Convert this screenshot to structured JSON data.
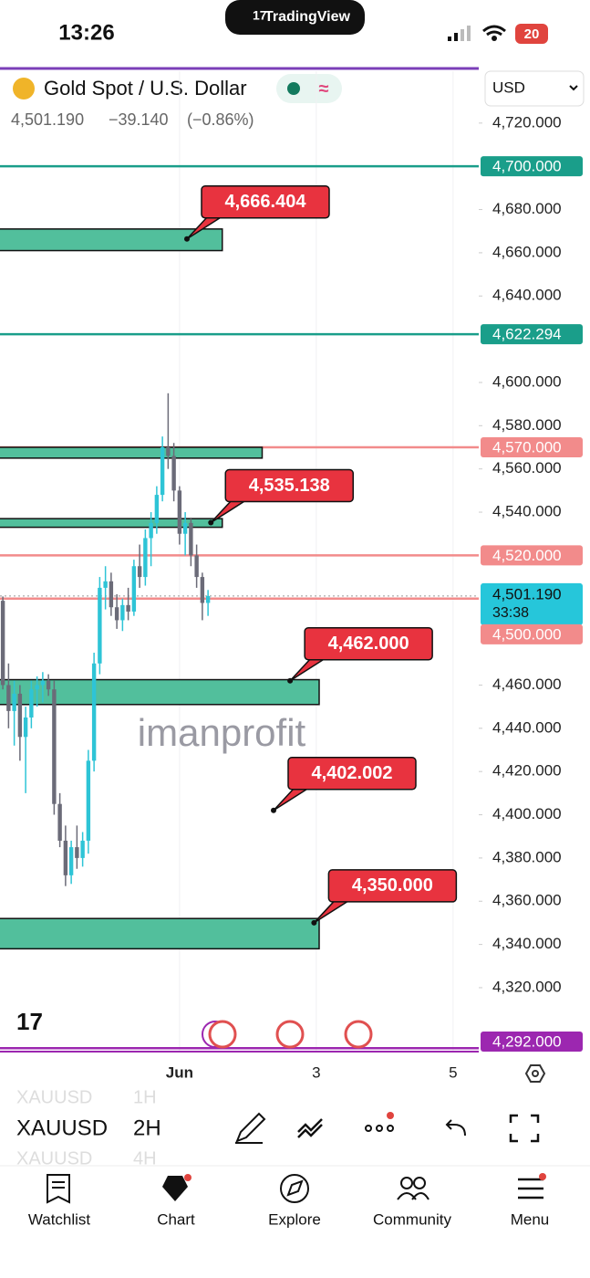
{
  "status_bar": {
    "time": "13:26",
    "app": "TradingView",
    "battery": "20"
  },
  "header": {
    "symbol": "Gold Spot / U.S. Dollar",
    "last": "4,501.190",
    "change": "−39.140",
    "change_pct": "(−0.86%)",
    "currency": "USD"
  },
  "chart_data": {
    "type": "candlestick",
    "watermark": "imanprofit",
    "up_color": "#2ec4d6",
    "down_color": "#6b6b78",
    "x": [
      0,
      1,
      2,
      3,
      4,
      5,
      6,
      7,
      8,
      9,
      10,
      11,
      12,
      13,
      14,
      15,
      16,
      17,
      18,
      19,
      20,
      21,
      22,
      23,
      24,
      25,
      26,
      27,
      28,
      29,
      30,
      31,
      32,
      33,
      34,
      35,
      36
    ],
    "open": [
      4499,
      4460,
      4448,
      4456,
      4436,
      4445,
      4458,
      4460,
      4462,
      4458,
      4405,
      4388,
      4372,
      4385,
      4380,
      4388,
      4425,
      4470,
      4505,
      4508,
      4496,
      4490,
      4497,
      4494,
      4515,
      4510,
      4528,
      4535,
      4548,
      4570,
      4566,
      4550,
      4530,
      4535,
      4520,
      4510,
      4498
    ],
    "high": [
      4501,
      4470,
      4462,
      4460,
      4450,
      4462,
      4464,
      4466,
      4465,
      4462,
      4410,
      4395,
      4388,
      4395,
      4392,
      4430,
      4475,
      4510,
      4515,
      4512,
      4502,
      4500,
      4505,
      4518,
      4525,
      4532,
      4540,
      4552,
      4575,
      4595,
      4572,
      4552,
      4540,
      4537,
      4525,
      4512,
      4504
    ],
    "low": [
      4458,
      4440,
      4432,
      4425,
      4410,
      4440,
      4450,
      4452,
      4455,
      4400,
      4385,
      4367,
      4368,
      4375,
      4376,
      4382,
      4420,
      4465,
      4495,
      4492,
      4486,
      4485,
      4490,
      4492,
      4505,
      4506,
      4515,
      4530,
      4545,
      4560,
      4545,
      4525,
      4520,
      4515,
      4505,
      4490,
      4492
    ],
    "close": [
      4460,
      4448,
      4456,
      4436,
      4445,
      4458,
      4460,
      4462,
      4458,
      4405,
      4388,
      4372,
      4385,
      4380,
      4388,
      4425,
      4470,
      4505,
      4508,
      4496,
      4490,
      4497,
      4494,
      4515,
      4510,
      4528,
      4535,
      4548,
      4570,
      4566,
      4550,
      4530,
      4535,
      4520,
      4510,
      4498,
      4501.19
    ],
    "xlim": [
      -0.5,
      83.5
    ],
    "xticks": [
      {
        "value": 31,
        "label": "Jun"
      },
      {
        "value": 55,
        "label": "3"
      },
      {
        "value": 79,
        "label": "5"
      }
    ],
    "ylim": [
      4290,
      4744
    ],
    "yticks": [
      {
        "value": 4720,
        "label": "4,720.000"
      },
      {
        "value": 4680,
        "label": "4,680.000"
      },
      {
        "value": 4660,
        "label": "4,660.000"
      },
      {
        "value": 4640,
        "label": "4,640.000"
      },
      {
        "value": 4600,
        "label": "4,600.000"
      },
      {
        "value": 4580,
        "label": "4,580.000"
      },
      {
        "value": 4560,
        "label": "4,560.000"
      },
      {
        "value": 4540,
        "label": "4,540.000"
      },
      {
        "value": 4460,
        "label": "4,460.000"
      },
      {
        "value": 4440,
        "label": "4,440.000"
      },
      {
        "value": 4420,
        "label": "4,420.000"
      },
      {
        "value": 4400,
        "label": "4,400.000"
      },
      {
        "value": 4380,
        "label": "4,380.000"
      },
      {
        "value": 4360,
        "label": "4,360.000"
      },
      {
        "value": 4340,
        "label": "4,340.000"
      },
      {
        "value": 4320,
        "label": "4,320.000"
      }
    ],
    "levels": [
      {
        "value": 4700,
        "label": "4,700.000",
        "color": "#1a9e8a"
      },
      {
        "value": 4622.294,
        "label": "4,622.294",
        "color": "#1a9e8a"
      },
      {
        "value": 4570,
        "label": "4,570.000",
        "color": "#f28b8b"
      },
      {
        "value": 4520,
        "label": "4,520.000",
        "color": "#f28b8b"
      },
      {
        "value": 4500,
        "label": "4,500.000",
        "color": "#f28b8b"
      },
      {
        "value": 4292,
        "label": "4,292.000",
        "color": "#9c27b0"
      }
    ],
    "last_price": {
      "value": 4501.19,
      "label": "4,501.190",
      "countdown": "33:38",
      "color": "#26c6da"
    },
    "zones": [
      {
        "top": 4671,
        "bottom": 4661,
        "x_end": 38.5
      },
      {
        "top": 4570,
        "bottom": 4565,
        "x_end": 45.5
      },
      {
        "top": 4537,
        "bottom": 4533,
        "x_end": 38.5
      },
      {
        "top": 4462.5,
        "bottom": 4451,
        "x_end": 55.5
      },
      {
        "top": 4352,
        "bottom": 4338,
        "x_end": 55.5
      }
    ],
    "callouts": [
      {
        "value": 4666.404,
        "label": "4,666.404",
        "x": 32.3
      },
      {
        "value": 4535.138,
        "label": "4,535.138",
        "x": 36.5
      },
      {
        "value": 4462,
        "label": "4,462.000",
        "x": 50.4
      },
      {
        "value": 4402.002,
        "label": "4,402.002",
        "x": 47.5
      },
      {
        "value": 4350,
        "label": "4,350.000",
        "x": 54.6
      }
    ]
  },
  "toolbar": {
    "symbol": "XAUUSD",
    "interval": "2H",
    "interval_above": "1H",
    "interval_below": "4H"
  },
  "nav": [
    "Watchlist",
    "Chart",
    "Explore",
    "Community",
    "Menu"
  ]
}
